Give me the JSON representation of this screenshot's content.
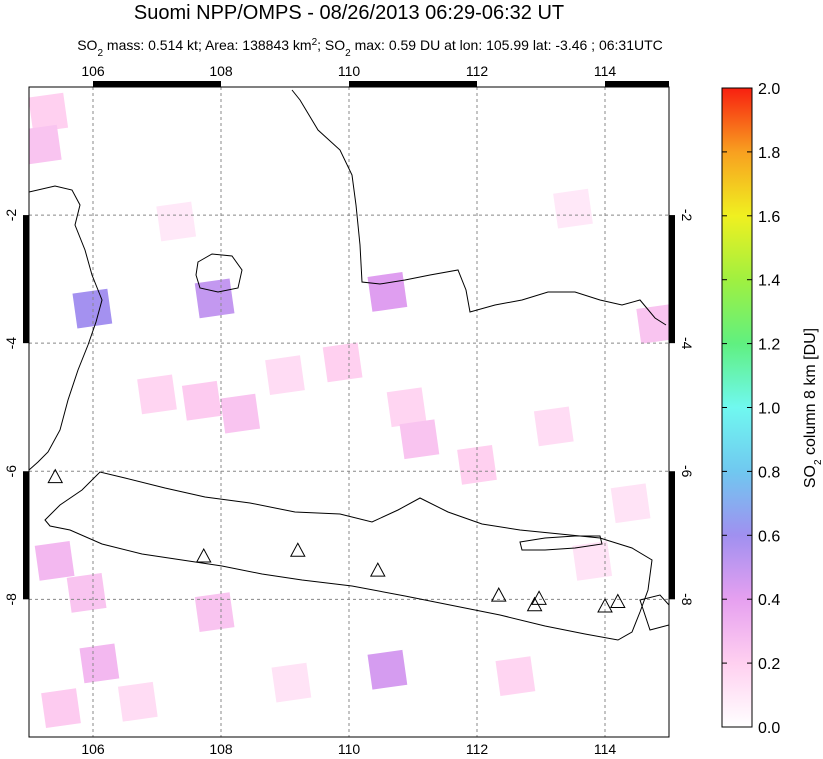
{
  "map": {
    "type": "map",
    "title": "Suomi NPP/OMPS - 08/26/2013 06:29-06:32 UT",
    "subtitle": [
      "SO",
      "2",
      " mass: 0.514 kt; Area: 138843 km",
      "2",
      "; SO",
      "2",
      " max: 0.59 DU at lon: 105.99 lat: -3.46 ; 06:31UTC"
    ],
    "xlim": [
      105,
      115
    ],
    "ylim": [
      -10.15,
      0
    ],
    "xticks": [
      106,
      108,
      110,
      112,
      114
    ],
    "yticks": [
      -2,
      -4,
      -6,
      -8
    ],
    "grid": true,
    "colorbar": {
      "label": [
        "SO",
        "2",
        " column 8 km [DU]"
      ],
      "lim": [
        0,
        2
      ],
      "ticks": [
        {
          "value": 0,
          "label": "0.0"
        },
        {
          "value": 0.2,
          "label": "0.2"
        },
        {
          "value": 0.4,
          "label": "0.4"
        },
        {
          "value": 0.6,
          "label": "0.6"
        },
        {
          "value": 0.8,
          "label": "0.8"
        },
        {
          "value": 1,
          "label": "1.0"
        },
        {
          "value": 1.2,
          "label": "1.2"
        },
        {
          "value": 1.4,
          "label": "1.4"
        },
        {
          "value": 1.6,
          "label": "1.6"
        },
        {
          "value": 1.8,
          "label": "1.8"
        },
        {
          "value": 2,
          "label": "2.0"
        }
      ],
      "colors": [
        "#ffffff",
        "#ffd0f0",
        "#e6a0f0",
        "#a090f0",
        "#70c8f0",
        "#70f8f0",
        "#60f080",
        "#a0f040",
        "#f0f020",
        "#f8a020",
        "#f82010"
      ]
    },
    "cells": [
      {
        "lon": 105.99,
        "lat": -3.46,
        "value": 0.59
      },
      {
        "lon": 107.9,
        "lat": -3.3,
        "value": 0.5
      },
      {
        "lon": 110.6,
        "lat": -3.2,
        "value": 0.42
      },
      {
        "lon": 110.6,
        "lat": -9.1,
        "value": 0.45
      },
      {
        "lon": 105.3,
        "lat": -0.4,
        "value": 0.2
      },
      {
        "lon": 105.2,
        "lat": -0.9,
        "value": 0.25
      },
      {
        "lon": 105.4,
        "lat": -7.4,
        "value": 0.3
      },
      {
        "lon": 105.9,
        "lat": -7.9,
        "value": 0.25
      },
      {
        "lon": 106.1,
        "lat": -9.0,
        "value": 0.3
      },
      {
        "lon": 105.5,
        "lat": -9.7,
        "value": 0.22
      },
      {
        "lon": 107.0,
        "lat": -4.8,
        "value": 0.18
      },
      {
        "lon": 107.7,
        "lat": -4.9,
        "value": 0.22
      },
      {
        "lon": 108.3,
        "lat": -5.1,
        "value": 0.25
      },
      {
        "lon": 109.0,
        "lat": -4.5,
        "value": 0.15
      },
      {
        "lon": 109.9,
        "lat": -4.3,
        "value": 0.2
      },
      {
        "lon": 110.9,
        "lat": -5.0,
        "value": 0.18
      },
      {
        "lon": 111.1,
        "lat": -5.5,
        "value": 0.25
      },
      {
        "lon": 112.0,
        "lat": -5.9,
        "value": 0.2
      },
      {
        "lon": 113.2,
        "lat": -5.3,
        "value": 0.15
      },
      {
        "lon": 114.8,
        "lat": -3.7,
        "value": 0.25
      },
      {
        "lon": 114.4,
        "lat": -6.5,
        "value": 0.12
      },
      {
        "lon": 107.9,
        "lat": -8.2,
        "value": 0.25
      },
      {
        "lon": 109.1,
        "lat": -9.3,
        "value": 0.12
      },
      {
        "lon": 112.6,
        "lat": -9.2,
        "value": 0.18
      },
      {
        "lon": 107.3,
        "lat": -2.1,
        "value": 0.1
      },
      {
        "lon": 113.5,
        "lat": -1.9,
        "value": 0.1
      },
      {
        "lon": 106.7,
        "lat": -9.6,
        "value": 0.15
      },
      {
        "lon": 113.8,
        "lat": -7.4,
        "value": 0.12
      }
    ],
    "volcanoes": [
      {
        "lon": 105.41,
        "lat": -6.1
      },
      {
        "lon": 107.73,
        "lat": -7.34
      },
      {
        "lon": 109.2,
        "lat": -7.25
      },
      {
        "lon": 110.45,
        "lat": -7.56
      },
      {
        "lon": 112.34,
        "lat": -7.95
      },
      {
        "lon": 112.97,
        "lat": -8.0
      },
      {
        "lon": 112.9,
        "lat": -8.1
      },
      {
        "lon": 114.0,
        "lat": -8.12
      },
      {
        "lon": 114.2,
        "lat": -8.05
      }
    ]
  }
}
